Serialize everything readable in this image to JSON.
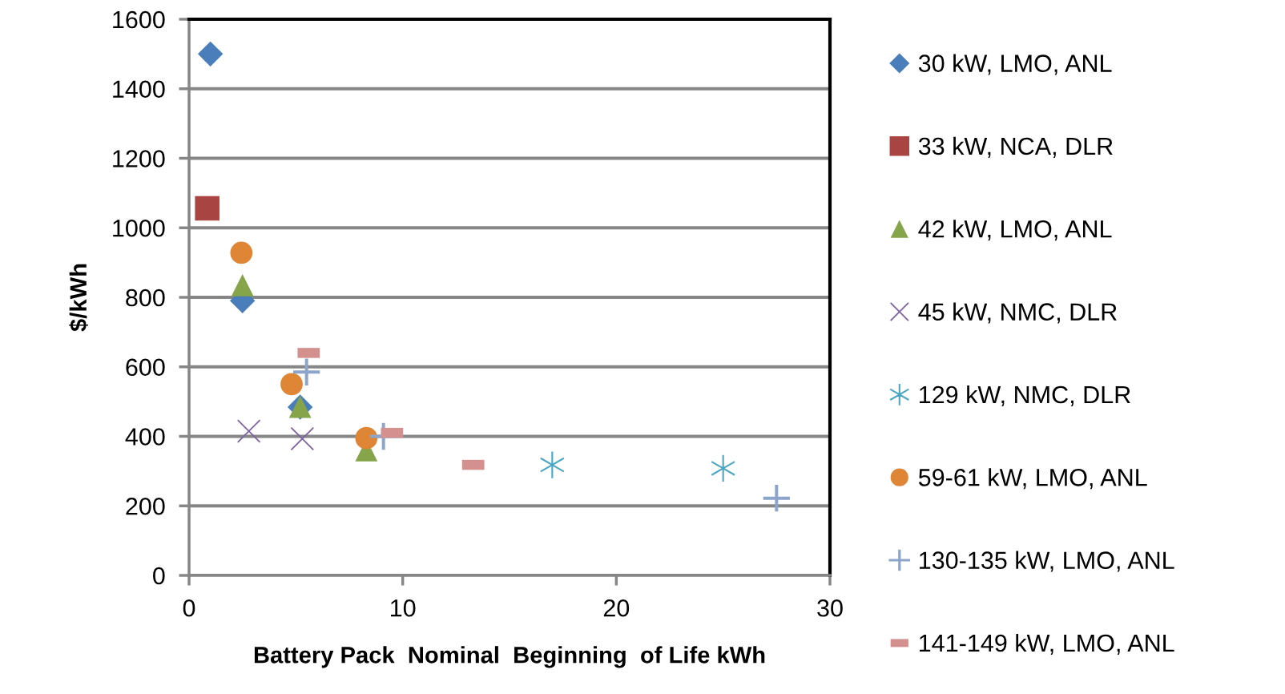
{
  "chart_data": {
    "type": "scatter",
    "xlabel": "Battery Pack  Nominal  Beginning  of Life kWh",
    "ylabel": "$/kWh",
    "xlim": [
      0,
      30
    ],
    "xticks": [
      0,
      10,
      20,
      30
    ],
    "ylim": [
      0,
      1600
    ],
    "yticks": [
      0,
      200,
      400,
      600,
      800,
      1000,
      1200,
      1400,
      1600
    ],
    "grid": "y",
    "legend": "right",
    "series": [
      {
        "name": "30 kW, LMO, ANL",
        "color": "#4a7ebb",
        "marker": "diamond",
        "x": [
          1.0,
          2.5,
          5.2
        ],
        "values": [
          1500,
          790,
          484
        ]
      },
      {
        "name": "33 kW, NCA, DLR",
        "color": "#a84442",
        "marker": "square",
        "x": [
          0.85
        ],
        "values": [
          1056
        ]
      },
      {
        "name": "42 kW, LMO, ANL",
        "color": "#86a44a",
        "marker": "triangle",
        "x": [
          2.5,
          5.2,
          8.3
        ],
        "values": [
          835,
          485,
          360
        ]
      },
      {
        "name": "45 kW, NMC, DLR",
        "color": "#7e62a1",
        "marker": "cross",
        "x": [
          2.8,
          5.3
        ],
        "values": [
          415,
          393
        ]
      },
      {
        "name": "129 kW, NMC, DLR",
        "color": "#4ba6c3",
        "x": [
          17.0,
          25.0
        ],
        "values": [
          318,
          308
        ]
      },
      {
        "name": "59-61 kW, LMO, ANL",
        "color": "#df8536",
        "marker": "circle",
        "x": [
          2.45,
          4.8,
          8.3
        ],
        "values": [
          928,
          550,
          395
        ]
      },
      {
        "name": "130-135 kW, LMO, ANL",
        "color": "#8ea5cb",
        "x": [
          5.5,
          9.1,
          27.5
        ],
        "values": [
          585,
          400,
          222
        ]
      },
      {
        "name": "141-149 kW, LMO, ANL",
        "color": "#d48f8f",
        "x": [
          5.6,
          9.5,
          13.3
        ],
        "values": [
          640,
          410,
          318
        ]
      }
    ]
  }
}
